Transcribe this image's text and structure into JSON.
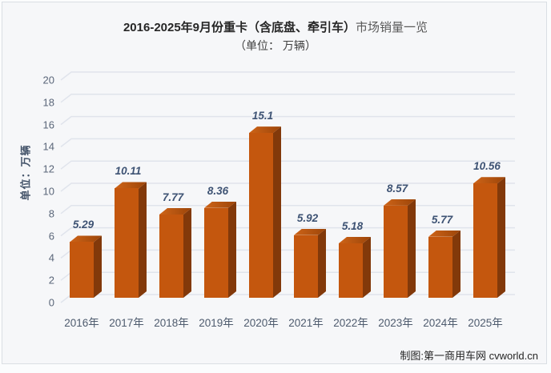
{
  "title": {
    "bold": "2016-2025年9月份重卡（含底盘、牵引车）",
    "rest": "市场销量一览",
    "subtitle": "（单位：  万辆）"
  },
  "y_axis": {
    "unit_label": "单位：万辆",
    "ticks": [
      0,
      2,
      4,
      6,
      8,
      10,
      12,
      14,
      16,
      18,
      20
    ]
  },
  "footer": "制图:第一商用车网 cvworld.cn",
  "colors": {
    "bar_front": "#C4570E",
    "bar_side": "#82390A",
    "bar_top_light": "#CE6418",
    "bar_top_dark": "#9C4509",
    "gridline": "#E0E4EC",
    "background": "#F6F7F9",
    "value_label": "#3E5374",
    "axis_text": "#5A6679"
  },
  "chart_data": {
    "type": "bar",
    "style": "3d-column",
    "title": "2016-2025年9月份重卡（含底盘、牵引车）市场销量一览",
    "subtitle": "（单位：万辆）",
    "xlabel": "",
    "ylabel": "单位：万辆",
    "ylim": [
      0,
      20
    ],
    "ytick_step": 2,
    "grid": true,
    "legend": "none",
    "categories": [
      "2016年",
      "2017年",
      "2018年",
      "2019年",
      "2020年",
      "2021年",
      "2022年",
      "2023年",
      "2024年",
      "2025年"
    ],
    "values": [
      5.29,
      10.11,
      7.77,
      8.36,
      15.1,
      5.92,
      5.18,
      8.57,
      5.77,
      10.56
    ],
    "value_labels": [
      "5.29",
      "10.11",
      "7.77",
      "8.36",
      "15.1",
      "5.92",
      "5.18",
      "8.57",
      "5.77",
      "10.56"
    ]
  }
}
